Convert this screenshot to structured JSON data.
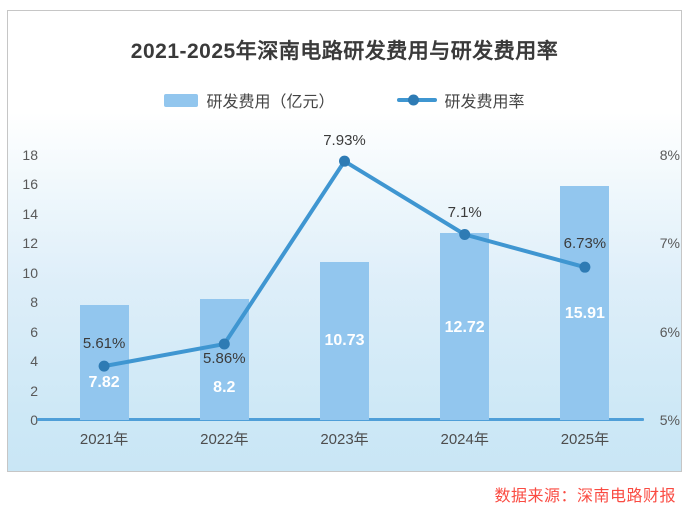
{
  "title": "2021-2025年深南电路研发费用与研发费用率",
  "legend": {
    "items": [
      {
        "label": "研发费用（亿元）",
        "swatch": "bar-swatch"
      },
      {
        "label": "研发费用率",
        "swatch": "line-swatch"
      }
    ]
  },
  "source_note": "数据来源：深南电路财报",
  "colors": {
    "bar": "#92c6ee",
    "line": "#3f96d1",
    "marker": "#2e7bb4",
    "axis_line": "#4f9fd8",
    "source_text": "#fa4b42"
  },
  "chart_data": {
    "type": "bar+line combo",
    "title": "2021-2025年深南电路研发费用与研发费用率",
    "categories": [
      "2021年",
      "2022年",
      "2023年",
      "2024年",
      "2025年"
    ],
    "series": [
      {
        "name": "研发费用（亿元）",
        "type": "bar",
        "axis": "left",
        "values": [
          7.82,
          8.2,
          10.73,
          12.72,
          15.91
        ],
        "labels": [
          "7.82",
          "8.2",
          "10.73",
          "12.72",
          "15.91"
        ],
        "color": "#92c6ee"
      },
      {
        "name": "研发费用率",
        "type": "line",
        "axis": "right",
        "values": [
          5.61,
          5.86,
          7.93,
          7.1,
          6.73
        ],
        "labels": [
          "5.61%",
          "5.86%",
          "7.93%",
          "7.1%",
          "6.73%"
        ],
        "color": "#3f96d1",
        "marker_color": "#2e7bb4"
      }
    ],
    "left_axis": {
      "min": 0,
      "max": 18,
      "step": 2,
      "ticks": [
        "0",
        "2",
        "4",
        "6",
        "8",
        "10",
        "12",
        "14",
        "16",
        "18"
      ]
    },
    "right_axis": {
      "min": 5,
      "max": 8,
      "step": 1,
      "ticks": [
        "5%",
        "6%",
        "7%",
        "8%"
      ]
    },
    "grid": false,
    "legend_position": "top"
  }
}
